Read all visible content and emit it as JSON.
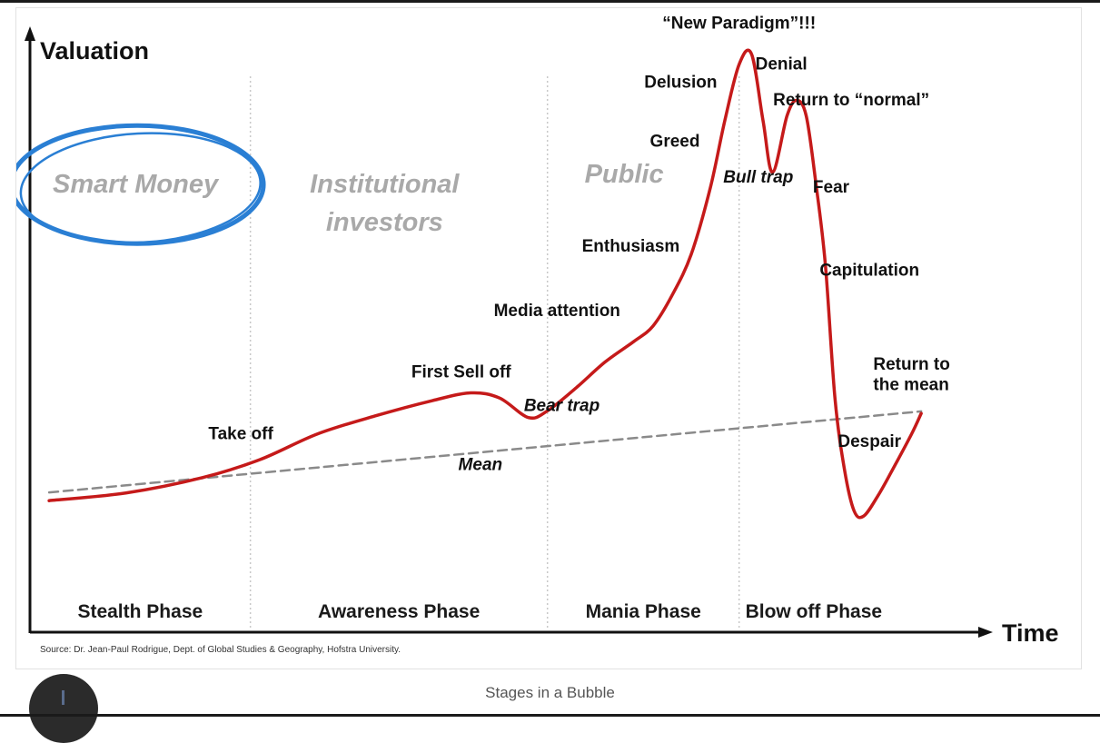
{
  "chart_data": {
    "type": "line",
    "title": "",
    "ylabel": "Valuation",
    "xlabel": "Time",
    "caption": "Stages in a Bubble",
    "source": "Source: Dr. Jean-Paul Rodrigue, Dept. of Global Studies & Geography, Hofstra University.",
    "xlim": [
      0,
      100
    ],
    "ylim": [
      0,
      100
    ],
    "grid": false,
    "series": [
      {
        "name": "",
        "color": "#c51a1a",
        "style": "solid",
        "points": [
          [
            2,
            12
          ],
          [
            10,
            13.5
          ],
          [
            18,
            16.5
          ],
          [
            24,
            20
          ],
          [
            30,
            25
          ],
          [
            36,
            28.5
          ],
          [
            42,
            31.5
          ],
          [
            46,
            33
          ],
          [
            49,
            32
          ],
          [
            52,
            28.2
          ],
          [
            54,
            29.5
          ],
          [
            57,
            34
          ],
          [
            60,
            39
          ],
          [
            63,
            43
          ],
          [
            65,
            46
          ],
          [
            67,
            52
          ],
          [
            69,
            60
          ],
          [
            71,
            73
          ],
          [
            72.5,
            86
          ],
          [
            74,
            97
          ],
          [
            75.3,
            99
          ],
          [
            76.5,
            86
          ],
          [
            77.5,
            76
          ],
          [
            79,
            87
          ],
          [
            80,
            90
          ],
          [
            81,
            87
          ],
          [
            82,
            74
          ],
          [
            83,
            58
          ],
          [
            84,
            32
          ],
          [
            85,
            18
          ],
          [
            86,
            10
          ],
          [
            87,
            9
          ],
          [
            88.5,
            13
          ],
          [
            90,
            18
          ],
          [
            92,
            25
          ],
          [
            93,
            29
          ]
        ]
      },
      {
        "name": "Mean",
        "color": "#8a8a8a",
        "style": "dashed",
        "points": [
          [
            2,
            13.6
          ],
          [
            93,
            29.4
          ]
        ]
      }
    ],
    "phases": [
      {
        "label": "Stealth Phase",
        "start": 0,
        "end": 23
      },
      {
        "label": "Awareness Phase",
        "start": 23,
        "end": 54
      },
      {
        "label": "Mania Phase",
        "start": 54,
        "end": 74
      },
      {
        "label": "Blow off Phase",
        "start": 74,
        "end": 100
      }
    ],
    "investor_groups": [
      {
        "lines": [
          "Smart Money"
        ],
        "x": 11,
        "y": 72,
        "circled": true
      },
      {
        "lines": [
          "Institutional",
          "investors"
        ],
        "x": 37,
        "y": 72,
        "circled": false
      },
      {
        "lines": [
          "Public"
        ],
        "x": 62,
        "y": 74,
        "circled": false
      }
    ],
    "annotations": [
      {
        "text": "Take off",
        "x": 22,
        "y": 24,
        "italic": false,
        "anchor": "middle"
      },
      {
        "text": "First Sell off",
        "x": 45,
        "y": 36,
        "italic": false,
        "anchor": "middle"
      },
      {
        "text": "Bear trap",
        "x": 55.5,
        "y": 29.5,
        "italic": true,
        "anchor": "middle"
      },
      {
        "text": "Mean",
        "x": 47,
        "y": 18,
        "italic": true,
        "anchor": "middle"
      },
      {
        "text": "Media attention",
        "x": 55,
        "y": 48,
        "italic": false,
        "anchor": "middle"
      },
      {
        "text": "Enthusiasm",
        "x": 62.7,
        "y": 60.5,
        "italic": false,
        "anchor": "middle"
      },
      {
        "text": "Greed",
        "x": 67.3,
        "y": 81,
        "italic": false,
        "anchor": "middle"
      },
      {
        "text": "Delusion",
        "x": 67.9,
        "y": 92.5,
        "italic": false,
        "anchor": "middle"
      },
      {
        "text": "“New Paradigm”!!!",
        "x": 74,
        "y": 104,
        "italic": false,
        "anchor": "middle"
      },
      {
        "text": "Denial",
        "x": 78.4,
        "y": 96,
        "italic": false,
        "anchor": "middle"
      },
      {
        "text": "Return to “normal”",
        "x": 85.7,
        "y": 89,
        "italic": false,
        "anchor": "middle"
      },
      {
        "text": "Bull trap",
        "x": 76,
        "y": 74,
        "italic": true,
        "anchor": "middle"
      },
      {
        "text": "Fear",
        "x": 81.7,
        "y": 72,
        "italic": false,
        "anchor": "start"
      },
      {
        "text": "Capitulation",
        "x": 82.4,
        "y": 55.8,
        "italic": false,
        "anchor": "start"
      },
      {
        "text": "Return to",
        "x": 88,
        "y": 37.5,
        "italic": false,
        "anchor": "start"
      },
      {
        "text": "the mean",
        "x": 88,
        "y": 33.5,
        "italic": false,
        "anchor": "start"
      },
      {
        "text": "Despair",
        "x": 84.3,
        "y": 22.5,
        "italic": false,
        "anchor": "start"
      }
    ],
    "colors": {
      "curve": "#c51a1a",
      "mean_line": "#8a8a8a",
      "axes": "#111111",
      "group_label": "#a9a9a9",
      "highlight_circle": "#2a7fd4",
      "phase_divider": "#c8c8c8"
    }
  }
}
